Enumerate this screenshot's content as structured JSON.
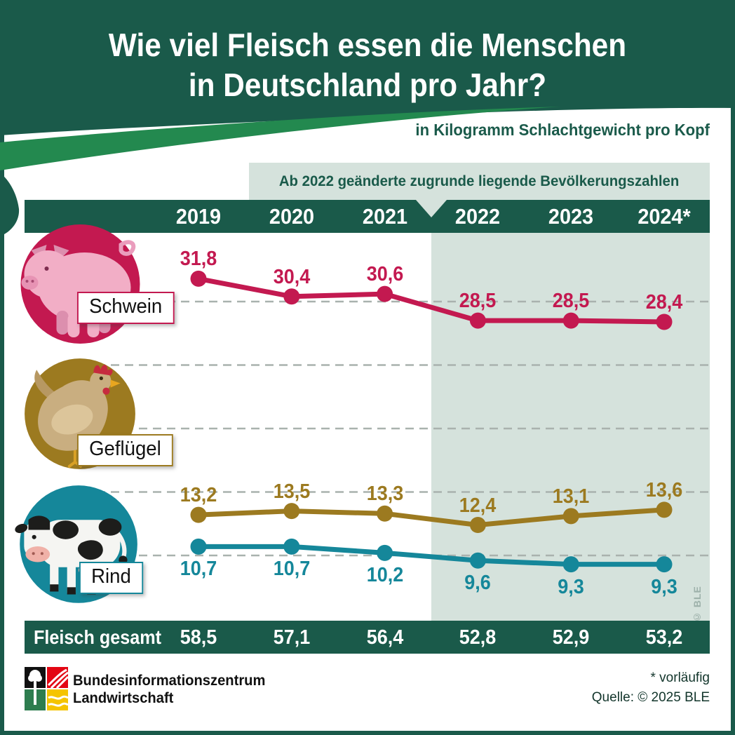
{
  "header": {
    "title_line1": "Wie viel Fleisch essen die Menschen",
    "title_line2": "in Deutschland pro Jahr?",
    "subtitle": "in Kilogramm Schlachtgewicht pro Kopf"
  },
  "note": {
    "text": "Ab 2022 geänderte zugrunde liegende Bevölkerungszahlen"
  },
  "chart_data": {
    "type": "line",
    "title": "Wie viel Fleisch essen die Menschen in Deutschland pro Jahr?",
    "ylabel": "in Kilogramm Schlachtgewicht pro Kopf",
    "categories": [
      "2019",
      "2020",
      "2021",
      "2022",
      "2023",
      "2024*"
    ],
    "series": [
      {
        "name": "Schwein",
        "color": "#c31950",
        "label_position": "above",
        "values": [
          31.8,
          30.4,
          30.6,
          28.5,
          28.5,
          28.4
        ],
        "display": [
          "31,8",
          "30,4",
          "30,6",
          "28,5",
          "28,5",
          "28,4"
        ]
      },
      {
        "name": "Geflügel",
        "color": "#9c7a20",
        "label_position": "above",
        "values": [
          13.2,
          13.5,
          13.3,
          12.4,
          13.1,
          13.6
        ],
        "display": [
          "13,2",
          "13,5",
          "13,3",
          "12,4",
          "13,1",
          "13,6"
        ]
      },
      {
        "name": "Rind",
        "color": "#15879a",
        "label_position": "below",
        "values": [
          10.7,
          10.7,
          10.2,
          9.6,
          9.3,
          9.3
        ],
        "display": [
          "10,7",
          "10,7",
          "10,2",
          "9,6",
          "9,3",
          "9,3"
        ]
      }
    ],
    "gridline_values": [
      30,
      25,
      20,
      15,
      10
    ],
    "highlight_from_category": "2022",
    "grid": true,
    "legend_position": "left-row-labels"
  },
  "totals": {
    "label": "Fleisch gesamt",
    "values": [
      58.5,
      57.1,
      56.4,
      52.8,
      52.9,
      53.2
    ],
    "display": [
      "58,5",
      "57,1",
      "56,4",
      "52,8",
      "52,9",
      "53,2"
    ]
  },
  "watermark": "© BLE",
  "footer": {
    "brand_line1": "Bundesinformationszentrum",
    "brand_line2": "Landwirtschaft",
    "footnote": "* vorläufig",
    "source": "Quelle: © 2025 BLE"
  },
  "colors": {
    "brand_dark_green": "#1a5a4a",
    "swoosh_green": "#23894f",
    "highlight_sage": "#d5e2dc",
    "schwein_red": "#c31950",
    "gefluegel_olive": "#9c7a20",
    "rind_teal": "#15879a",
    "gridline_gray": "#a9b2ae"
  }
}
